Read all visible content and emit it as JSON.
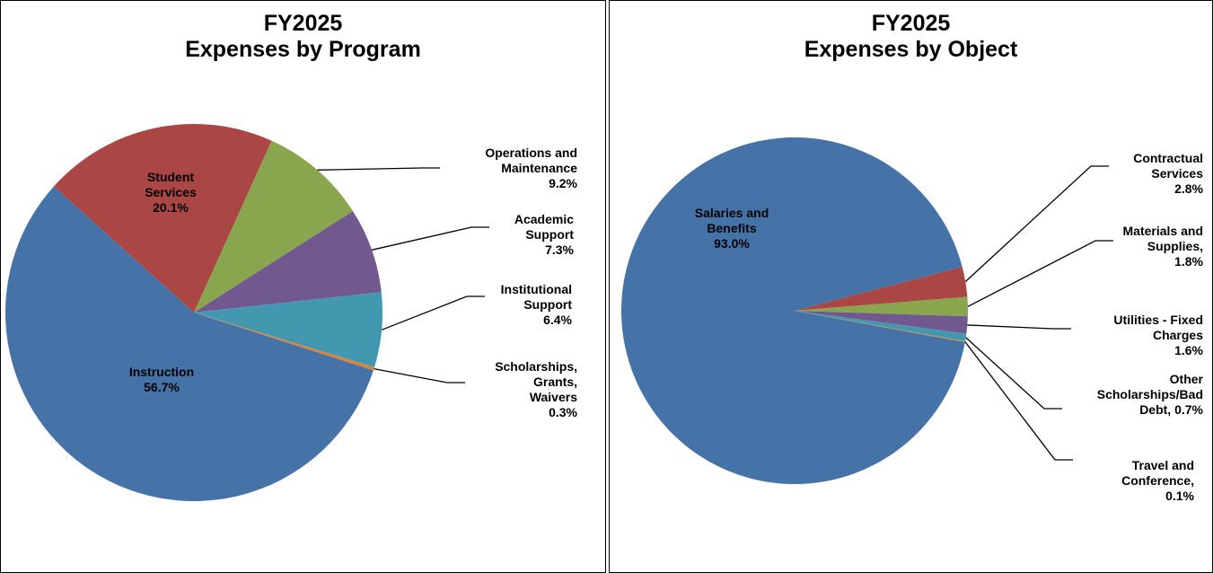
{
  "chart_data": [
    {
      "type": "pie",
      "title": "FY2025",
      "subtitle": "Expenses by Program",
      "categories": [
        "Student Services",
        "Operations and Maintenance",
        "Academic Support",
        "Institutional Support",
        "Scholarships, Grants, Waivers",
        "Instruction"
      ],
      "values": [
        20.1,
        9.2,
        7.3,
        6.4,
        0.3,
        56.7
      ],
      "value_labels": [
        "20.1%",
        "9.2%",
        "7.3%",
        "6.4%",
        "0.3%",
        "56.7%"
      ],
      "colors": [
        "#aa4643",
        "#89a54e",
        "#71588f",
        "#4198af",
        "#db843d",
        "#4572a7"
      ]
    },
    {
      "type": "pie",
      "title": "FY2025",
      "subtitle": "Expenses by Object",
      "categories": [
        "Contractual Services",
        "Materials and Supplies,",
        "Utilities - Fixed Charges",
        "Other Scholarships/Bad Debt,",
        "Travel and Conference,",
        "Salaries and Benefits"
      ],
      "values": [
        2.8,
        1.8,
        1.6,
        0.7,
        0.1,
        93.0
      ],
      "value_labels": [
        "2.8%",
        "1.8%",
        "1.6%",
        "0.7%",
        "0.1%",
        "93.0%"
      ],
      "colors": [
        "#aa4643",
        "#89a54e",
        "#71588f",
        "#4198af",
        "#db843d",
        "#4572a7"
      ]
    }
  ]
}
